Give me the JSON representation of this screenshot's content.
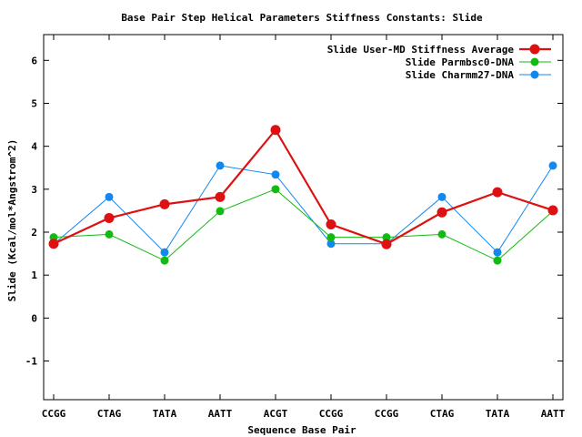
{
  "chart_data": {
    "type": "line",
    "title": "Base Pair Step Helical Parameters Stiffness Constants: Slide",
    "xlabel": "Sequence Base Pair",
    "ylabel": "Slide (Kcal/mol*Angstrom^2)",
    "categories": [
      "CCGG",
      "CTAG",
      "TATA",
      "AATT",
      "ACGT",
      "CCGG",
      "CCGG",
      "CTAG",
      "TATA",
      "AATT"
    ],
    "ylim": [
      -1.9,
      6.6
    ],
    "yticks": [
      -1,
      0,
      1,
      2,
      3,
      4,
      5,
      6
    ],
    "grid": false,
    "legend_position": "top-right",
    "series": [
      {
        "name": "Slide User-MD Stiffness Average",
        "color": "#dd1111",
        "values": [
          1.73,
          2.33,
          2.65,
          2.82,
          4.38,
          2.18,
          1.72,
          2.46,
          2.93,
          2.51
        ]
      },
      {
        "name": "Slide Parmbsc0-DNA",
        "color": "#11bb11",
        "values": [
          1.88,
          1.95,
          1.34,
          2.49,
          3.0,
          1.88,
          1.88,
          1.95,
          1.34,
          2.49
        ]
      },
      {
        "name": "Slide Charmm27-DNA",
        "color": "#1188ee",
        "values": [
          1.72,
          2.82,
          1.53,
          3.55,
          3.34,
          1.73,
          1.73,
          2.82,
          1.53,
          3.55
        ]
      }
    ]
  }
}
